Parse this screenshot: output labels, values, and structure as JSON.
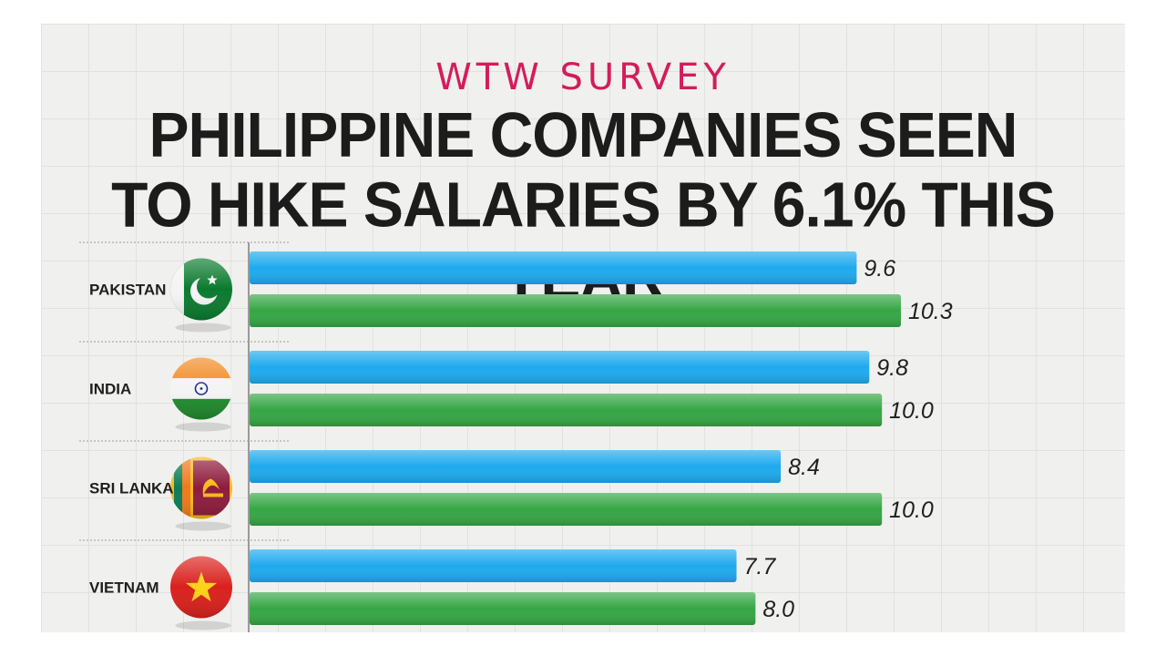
{
  "kicker": "WTW SURVEY",
  "title_lines": [
    "PHILIPPINE COMPANIES SEEN",
    "TO HIKE SALARIES BY 6.1% THIS YEAR"
  ],
  "colors": {
    "kicker": "#d41c5c",
    "series_a": "#1eaaee",
    "series_b": "#35a644"
  },
  "chart_data": {
    "type": "bar",
    "orientation": "horizontal",
    "categories": [
      "PAKISTAN",
      "INDIA",
      "SRI LANKA",
      "VIETNAM"
    ],
    "category_icons": [
      "pakistan-flag-icon",
      "india-flag-icon",
      "sri-lanka-flag-icon",
      "vietnam-flag-icon"
    ],
    "series": [
      {
        "values": [
          9.6,
          9.8,
          8.4,
          7.7
        ]
      },
      {
        "values": [
          10.3,
          10.0,
          10.0,
          8.0
        ]
      }
    ],
    "value_labels": [
      [
        "9.6",
        "9.8",
        "8.4",
        "7.7"
      ],
      [
        "10.3",
        "10.0",
        "10.0",
        "8.0"
      ]
    ],
    "title": "PHILIPPINE COMPANIES SEEN TO HIKE SALARIES BY 6.1% THIS YEAR",
    "xlim": [
      0,
      10.3
    ],
    "legend": "none",
    "grid": true
  }
}
